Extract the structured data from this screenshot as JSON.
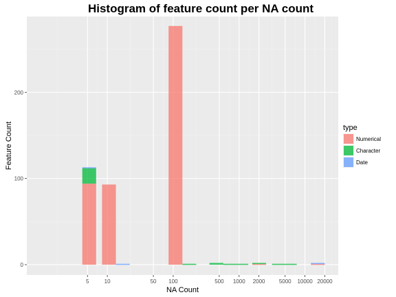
{
  "chart_data": {
    "type": "bar",
    "title": "Histogram of feature count per NA count",
    "xlabel": "NA Count",
    "ylabel": "Feature Count",
    "x_scale": "log10",
    "xlim": [
      0.6,
      32000
    ],
    "ylim": [
      -12,
      288
    ],
    "x_ticks": [
      5,
      10,
      50,
      100,
      500,
      1000,
      2000,
      5000,
      10000,
      20000
    ],
    "x_tick_labels": [
      "5",
      "10",
      "50",
      "100",
      "500",
      "1000",
      "2000",
      "5000",
      "10000",
      "20000"
    ],
    "y_ticks": [
      0,
      100,
      200
    ],
    "y_tick_labels": [
      "0",
      "100",
      "200"
    ],
    "grid": true,
    "stacked": true,
    "legend": {
      "title": "type",
      "position": "right"
    },
    "series": [
      {
        "name": "Numerical",
        "color": "#F8766D",
        "bins": [
          {
            "x0": 4.17,
            "x1": 6.76,
            "value": 94
          },
          {
            "x0": 8.32,
            "x1": 13.5,
            "value": 93
          },
          {
            "x0": 85.1,
            "x1": 138,
            "value": 277
          },
          {
            "x0": 1585,
            "x1": 2570,
            "value": 1
          },
          {
            "x0": 12300,
            "x1": 20000,
            "value": 1
          }
        ]
      },
      {
        "name": "Character",
        "color": "#00BA38",
        "bins": [
          {
            "x0": 4.17,
            "x1": 6.76,
            "value": 18
          },
          {
            "x0": 138,
            "x1": 224,
            "value": 1
          },
          {
            "x0": 355,
            "x1": 575,
            "value": 2
          },
          {
            "x0": 575,
            "x1": 1380,
            "value": 1
          },
          {
            "x0": 1585,
            "x1": 2570,
            "value": 1
          },
          {
            "x0": 3160,
            "x1": 7500,
            "value": 1
          }
        ]
      },
      {
        "name": "Date",
        "color": "#619CFF",
        "bins": [
          {
            "x0": 4.17,
            "x1": 6.76,
            "value": 1
          },
          {
            "x0": 13.5,
            "x1": 21.9,
            "value": 1
          },
          {
            "x0": 12300,
            "x1": 20000,
            "value": 1
          }
        ]
      }
    ]
  }
}
